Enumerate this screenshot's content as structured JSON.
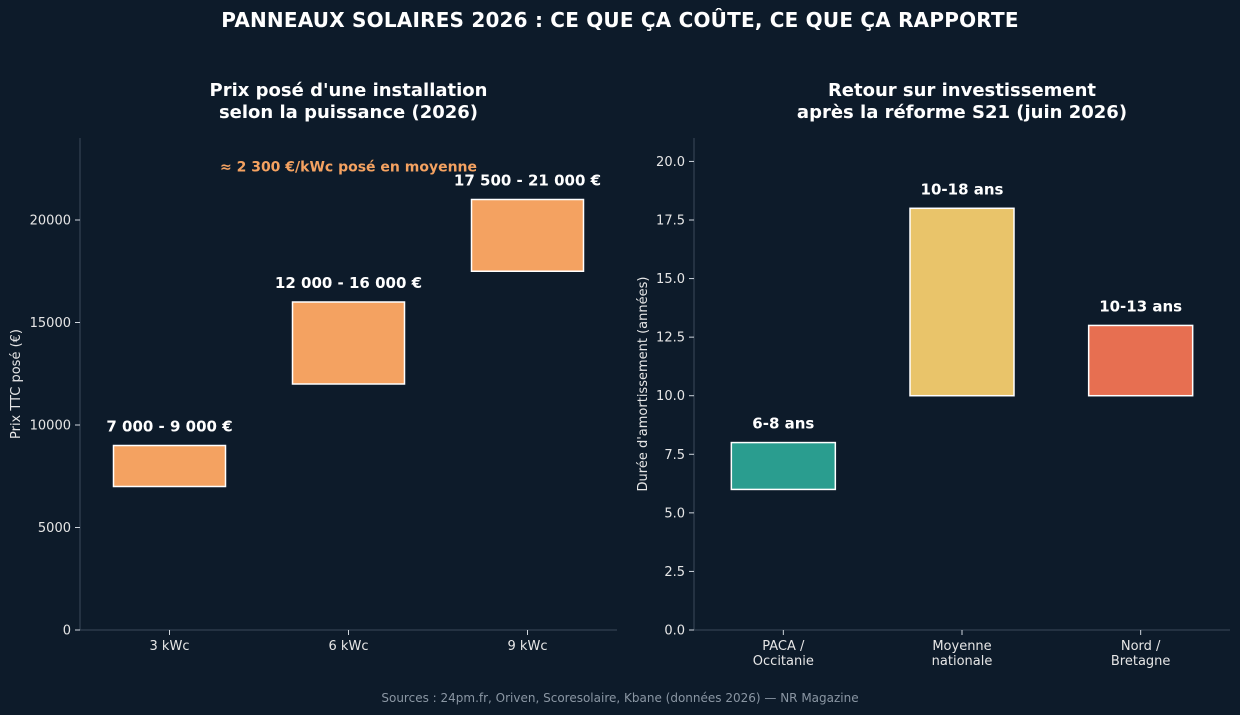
{
  "title": "PANNEAUX SOLAIRES 2026 : CE QUE ÇA COÛTE, CE QUE ÇA RAPPORTE",
  "sources": "Sources : 24pm.fr, Oriven, Scoresolaire, Kbane (données 2026) — NR Magazine",
  "chart_data": [
    {
      "type": "bar",
      "title_lines": [
        "Prix posé d'une installation",
        "selon la puissance (2026)"
      ],
      "xlabel": "",
      "ylabel": "Prix TTC posé (€)",
      "ylim": [
        0,
        24000
      ],
      "yticks": [
        0,
        5000,
        10000,
        15000,
        20000
      ],
      "categories": [
        "3 kWc",
        "6 kWc",
        "9 kWc"
      ],
      "ranges": [
        [
          7000,
          9000
        ],
        [
          12000,
          16000
        ],
        [
          17500,
          21000
        ]
      ],
      "data_labels": [
        "7 000 - 9 000 €",
        "12 000 - 16 000 €",
        "17 500 - 21 000 €"
      ],
      "colors": [
        "#f4a261",
        "#f4a261",
        "#f4a261"
      ],
      "annotation": {
        "text": "≈ 2 300 €/kWc posé en moyenne",
        "x": 1,
        "y": 22600,
        "color": "#f4a261"
      },
      "grid": false
    },
    {
      "type": "bar",
      "title_lines": [
        "Retour sur investissement",
        "après la réforme S21 (juin 2026)"
      ],
      "xlabel": "",
      "ylabel": "Durée d'amortissement (années)",
      "ylim": [
        0,
        21
      ],
      "yticks": [
        0.0,
        2.5,
        5.0,
        7.5,
        10.0,
        12.5,
        15.0,
        17.5,
        20.0
      ],
      "ytick_labels": [
        "0.0",
        "2.5",
        "5.0",
        "7.5",
        "10.0",
        "12.5",
        "15.0",
        "17.5",
        "20.0"
      ],
      "categories": [
        [
          "PACA /",
          "Occitanie"
        ],
        [
          "Moyenne",
          "nationale"
        ],
        [
          "Nord /",
          "Bretagne"
        ]
      ],
      "ranges": [
        [
          6,
          8
        ],
        [
          10,
          18
        ],
        [
          10,
          13
        ]
      ],
      "data_labels": [
        "6-8 ans",
        "10-18 ans",
        "10-13 ans"
      ],
      "colors": [
        "#2a9d8f",
        "#e9c46a",
        "#e76f51"
      ],
      "grid": false
    }
  ]
}
